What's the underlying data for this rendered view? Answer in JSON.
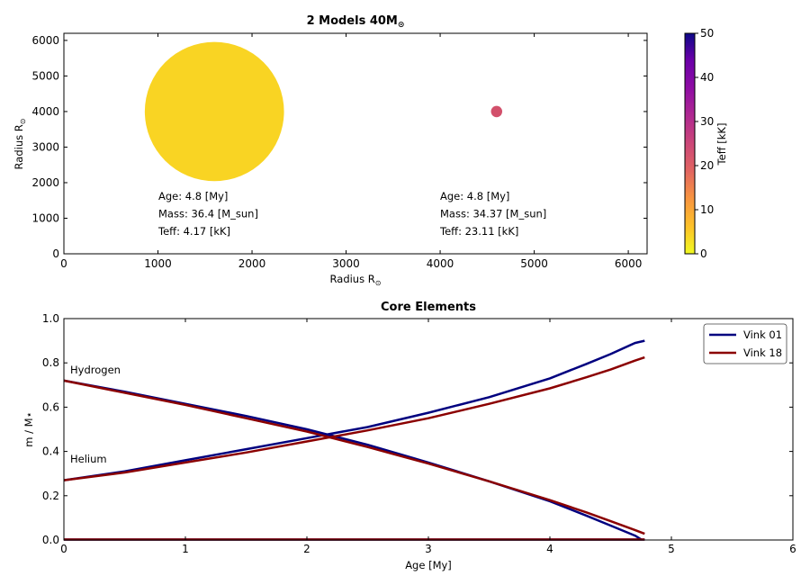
{
  "chart_data": [
    {
      "type": "scatter",
      "title_main": "2 Models 40M",
      "title_sub": "⊙",
      "xlabel_main": "Radius R",
      "xlabel_sub": "⊙",
      "ylabel_main": "Radius R",
      "ylabel_sub": "⊙",
      "xlim": [
        0,
        6200
      ],
      "ylim": [
        0,
        6200
      ],
      "xticks": [
        "0",
        "1000",
        "2000",
        "3000",
        "4000",
        "5000",
        "6000"
      ],
      "yticks": [
        "0",
        "1000",
        "2000",
        "3000",
        "4000",
        "5000",
        "6000"
      ],
      "points": [
        {
          "x": 1600,
          "y": 4000,
          "radius": 740,
          "teff": 4.17,
          "color": "#f9d423"
        },
        {
          "x": 4600,
          "y": 4000,
          "radius": 60,
          "teff": 23.11,
          "color": "#d2506b"
        }
      ],
      "annotations": [
        {
          "lines": [
            "Age: 4.8 [My]",
            "Mass: 36.4 [M_sun]",
            "Teff: 4.17 [kK]"
          ]
        },
        {
          "lines": [
            "Age: 4.8 [My]",
            "Mass: 34.37 [M_sun]",
            "Teff: 23.11 [kK]"
          ]
        }
      ],
      "colorbar": {
        "label": "Teff [kK]",
        "range": [
          0,
          50
        ],
        "ticks": [
          "0",
          "10",
          "20",
          "30",
          "40",
          "50"
        ],
        "colormap": "plasma_r"
      }
    },
    {
      "type": "line",
      "title": "Core Elements",
      "xlabel": "Age [My]",
      "ylabel": "m / M⋆",
      "xlim": [
        0,
        6
      ],
      "ylim": [
        0,
        1
      ],
      "xticks": [
        "0",
        "1",
        "2",
        "3",
        "4",
        "5",
        "6"
      ],
      "yticks": [
        "0.0",
        "0.2",
        "0.4",
        "0.6",
        "0.8",
        "1.0"
      ],
      "legend_position": "upper-right",
      "text_labels": [
        "Hydrogen",
        "Helium"
      ],
      "series": [
        {
          "name": "Vink 01",
          "color": "#00007f",
          "hydrogen": {
            "x": [
              0,
              0.5,
              1,
              1.5,
              2,
              2.5,
              3,
              3.5,
              4,
              4.3,
              4.5,
              4.7,
              4.75
            ],
            "y": [
              0.72,
              0.67,
              0.615,
              0.56,
              0.5,
              0.43,
              0.35,
              0.265,
              0.175,
              0.11,
              0.065,
              0.02,
              0.003
            ]
          },
          "helium": {
            "x": [
              0,
              0.5,
              1,
              1.5,
              2,
              2.5,
              3,
              3.5,
              4,
              4.3,
              4.5,
              4.7,
              4.78
            ],
            "y": [
              0.27,
              0.31,
              0.36,
              0.41,
              0.46,
              0.51,
              0.575,
              0.645,
              0.73,
              0.795,
              0.84,
              0.89,
              0.9
            ]
          },
          "metals": {
            "x": [
              0,
              4.78
            ],
            "y": [
              0.002,
              0.002
            ]
          }
        },
        {
          "name": "Vink 18",
          "color": "#8b0000",
          "hydrogen": {
            "x": [
              0,
              0.5,
              1,
              1.5,
              2,
              2.5,
              3,
              3.5,
              4,
              4.3,
              4.5,
              4.7,
              4.78
            ],
            "y": [
              0.72,
              0.665,
              0.61,
              0.55,
              0.49,
              0.42,
              0.345,
              0.265,
              0.18,
              0.125,
              0.085,
              0.045,
              0.028
            ]
          },
          "helium": {
            "x": [
              0,
              0.5,
              1,
              1.5,
              2,
              2.5,
              3,
              3.5,
              4,
              4.3,
              4.5,
              4.7,
              4.78
            ],
            "y": [
              0.27,
              0.305,
              0.35,
              0.395,
              0.445,
              0.495,
              0.55,
              0.615,
              0.685,
              0.735,
              0.77,
              0.81,
              0.825
            ]
          },
          "metals": {
            "x": [
              0,
              4.78
            ],
            "y": [
              0.002,
              0.002
            ]
          }
        }
      ]
    }
  ]
}
